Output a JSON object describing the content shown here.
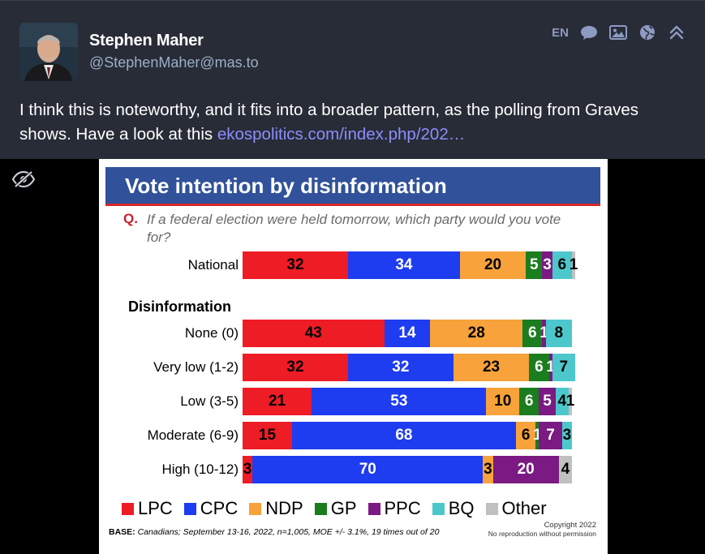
{
  "post": {
    "display_name": "Stephen Maher",
    "handle": "@StephenMaher@mas.to",
    "language": "EN",
    "text_before_link": "I think this is noteworthy, and it fits into a broader pattern, as the polling from Graves shows. Have a look at this ",
    "link_text": "ekospolitics.com/index.php/202…",
    "toolbar_icons": [
      "speech-bubble-icon",
      "image-icon",
      "globe-icon",
      "collapse-icon"
    ]
  },
  "media": {
    "hide_icon": "eye-slash-icon"
  },
  "chart_data": {
    "type": "bar",
    "orientation": "horizontal",
    "stacked": true,
    "title": "Vote intention by disinformation",
    "question_marker": "Q.",
    "question": "If a federal election were held tomorrow, which party would you vote for?",
    "section_label": "Disinformation",
    "categories": [
      "National",
      "None (0)",
      "Very low (1-2)",
      "Low (3-5)",
      "Moderate (6-9)",
      "High (10-12)"
    ],
    "series": [
      {
        "name": "LPC",
        "color": "#ee1c25",
        "values": [
          32,
          43,
          32,
          21,
          15,
          3
        ]
      },
      {
        "name": "CPC",
        "color": "#1e3cf0",
        "values": [
          34,
          14,
          32,
          53,
          68,
          70
        ]
      },
      {
        "name": "NDP",
        "color": "#f7a23a",
        "values": [
          20,
          28,
          23,
          10,
          6,
          3
        ]
      },
      {
        "name": "GP",
        "color": "#1a7d1e",
        "values": [
          5,
          6,
          6,
          6,
          1,
          0
        ]
      },
      {
        "name": "PPC",
        "color": "#7a1a82",
        "values": [
          3,
          1,
          1,
          5,
          7,
          20
        ]
      },
      {
        "name": "BQ",
        "color": "#4cc8cc",
        "values": [
          6,
          8,
          7,
          4,
          3,
          0
        ]
      },
      {
        "name": "Other",
        "color": "#c0c0c0",
        "values": [
          1,
          0,
          0,
          1,
          0,
          4
        ]
      }
    ],
    "xlim": [
      0,
      100
    ],
    "legend_position": "bottom",
    "base_label": "BASE:",
    "base_text": "Canadians; September 13-16, 2022, n=1,005, MOE +/- 3.1%, 19 times out of 20",
    "copyright": "Copyright 2022",
    "copyright_note": "No reproduction without permission"
  }
}
